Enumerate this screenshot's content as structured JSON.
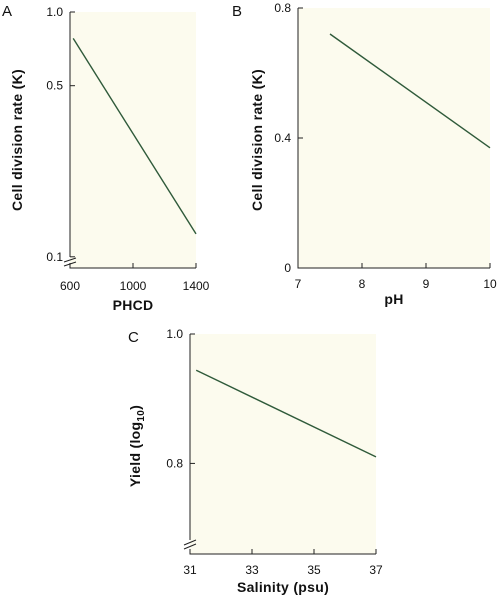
{
  "colors": {
    "panel_background": "#fcfbee",
    "series_line": "#2f5a3a",
    "axis": "#222222"
  },
  "chart_data": [
    {
      "panel": "A",
      "type": "line",
      "xlabel": "PHCD",
      "ylabel": "Cell division rate (K)",
      "yscale": "log",
      "xlim": [
        600,
        1400
      ],
      "ylim": [
        0.09,
        1.0
      ],
      "xticks": [
        600,
        1000,
        1400
      ],
      "xtick_labels": [
        "600",
        "1000",
        "1400"
      ],
      "yticks": [
        0.1,
        0.5,
        1.0
      ],
      "ytick_labels": [
        "0.1",
        "0.5",
        "1.0"
      ],
      "axis_break": "y",
      "grid": false,
      "series": [
        {
          "x": [
            620,
            1400
          ],
          "y": [
            0.78,
            0.124
          ]
        }
      ]
    },
    {
      "panel": "B",
      "type": "line",
      "xlabel": "pH",
      "ylabel": "Cell division rate (K)",
      "xlim": [
        7,
        10
      ],
      "ylim": [
        0,
        0.8
      ],
      "xticks": [
        7,
        8,
        9,
        10
      ],
      "xtick_labels": [
        "7",
        "8",
        "9",
        "10"
      ],
      "yticks": [
        0,
        0.4,
        0.8
      ],
      "ytick_labels": [
        "0",
        "0.4",
        "0.8"
      ],
      "grid": false,
      "series": [
        {
          "x": [
            7.5,
            10
          ],
          "y": [
            0.72,
            0.37
          ]
        }
      ]
    },
    {
      "panel": "C",
      "type": "line",
      "xlabel": "Salinity (psu)",
      "ylabel_main": "Yield (log",
      "ylabel_sub": "10",
      "ylabel_close": ")",
      "xlim": [
        31,
        37
      ],
      "ylim": [
        0.66,
        1.0
      ],
      "xticks": [
        31,
        33,
        35,
        37
      ],
      "xtick_labels": [
        "31",
        "33",
        "35",
        "37"
      ],
      "yticks": [
        0.8,
        1.0
      ],
      "ytick_labels": [
        "0.8",
        "1.0"
      ],
      "axis_break": "y",
      "grid": false,
      "series": [
        {
          "x": [
            31.2,
            37
          ],
          "y": [
            0.944,
            0.81
          ]
        }
      ]
    }
  ]
}
